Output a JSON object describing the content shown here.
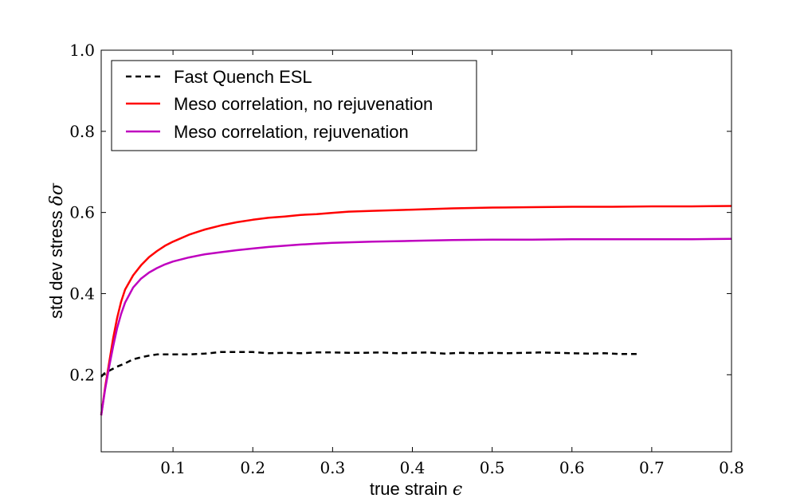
{
  "chart_data": {
    "type": "line",
    "title": "",
    "xlabel": "true strain",
    "xlabel_symbol": "ϵ",
    "ylabel": "std dev stress",
    "ylabel_symbol": "δσ",
    "xlim": [
      0.01,
      0.8
    ],
    "ylim": [
      0.01,
      1.0
    ],
    "xticks": [
      0.1,
      0.2,
      0.3,
      0.4,
      0.5,
      0.6,
      0.7,
      0.8
    ],
    "xtick_labels": [
      "0.1",
      "0.2",
      "0.3",
      "0.4",
      "0.5",
      "0.6",
      "0.7",
      "0.8"
    ],
    "yticks": [
      0.2,
      0.4,
      0.6,
      0.8,
      1.0
    ],
    "ytick_labels": [
      "0.2",
      "0.4",
      "0.6",
      "0.8",
      "1.0"
    ],
    "grid": false,
    "legend_position": "top-left",
    "series": [
      {
        "name": "Fast Quench ESL",
        "color": "#000000",
        "style": "dashed",
        "x": [
          0.01,
          0.015,
          0.02,
          0.03,
          0.04,
          0.05,
          0.06,
          0.07,
          0.08,
          0.09,
          0.1,
          0.12,
          0.14,
          0.16,
          0.18,
          0.2,
          0.22,
          0.24,
          0.26,
          0.28,
          0.3,
          0.32,
          0.34,
          0.36,
          0.38,
          0.4,
          0.42,
          0.44,
          0.46,
          0.48,
          0.5,
          0.52,
          0.54,
          0.56,
          0.58,
          0.6,
          0.62,
          0.64,
          0.66,
          0.68,
          0.685
        ],
        "y": [
          0.195,
          0.205,
          0.21,
          0.22,
          0.228,
          0.238,
          0.243,
          0.247,
          0.25,
          0.25,
          0.25,
          0.25,
          0.252,
          0.256,
          0.256,
          0.256,
          0.253,
          0.254,
          0.253,
          0.255,
          0.255,
          0.254,
          0.254,
          0.255,
          0.253,
          0.254,
          0.255,
          0.252,
          0.254,
          0.253,
          0.254,
          0.253,
          0.254,
          0.255,
          0.254,
          0.253,
          0.252,
          0.253,
          0.251,
          0.251,
          0.253
        ]
      },
      {
        "name": "Meso correlation, no rejuvenation",
        "color": "#ff0000",
        "style": "solid",
        "x": [
          0.01,
          0.015,
          0.02,
          0.025,
          0.03,
          0.035,
          0.04,
          0.05,
          0.06,
          0.07,
          0.08,
          0.09,
          0.1,
          0.12,
          0.14,
          0.16,
          0.18,
          0.2,
          0.22,
          0.24,
          0.26,
          0.28,
          0.3,
          0.32,
          0.35,
          0.4,
          0.45,
          0.5,
          0.55,
          0.6,
          0.65,
          0.7,
          0.75,
          0.8
        ],
        "y": [
          0.1,
          0.17,
          0.23,
          0.29,
          0.34,
          0.38,
          0.41,
          0.445,
          0.47,
          0.49,
          0.505,
          0.518,
          0.528,
          0.545,
          0.558,
          0.568,
          0.576,
          0.582,
          0.587,
          0.59,
          0.594,
          0.596,
          0.599,
          0.602,
          0.604,
          0.607,
          0.61,
          0.612,
          0.613,
          0.614,
          0.614,
          0.615,
          0.615,
          0.616
        ]
      },
      {
        "name": "Meso correlation, rejuvenation",
        "color": "#bf00bf",
        "style": "solid",
        "x": [
          0.01,
          0.015,
          0.02,
          0.025,
          0.03,
          0.035,
          0.04,
          0.05,
          0.06,
          0.07,
          0.08,
          0.09,
          0.1,
          0.12,
          0.14,
          0.16,
          0.18,
          0.2,
          0.22,
          0.24,
          0.26,
          0.28,
          0.3,
          0.35,
          0.4,
          0.45,
          0.5,
          0.55,
          0.6,
          0.65,
          0.7,
          0.75,
          0.8
        ],
        "y": [
          0.1,
          0.165,
          0.22,
          0.27,
          0.315,
          0.35,
          0.378,
          0.415,
          0.437,
          0.452,
          0.463,
          0.472,
          0.479,
          0.489,
          0.497,
          0.502,
          0.507,
          0.511,
          0.515,
          0.518,
          0.521,
          0.523,
          0.525,
          0.528,
          0.53,
          0.532,
          0.533,
          0.533,
          0.534,
          0.534,
          0.534,
          0.534,
          0.535
        ]
      }
    ]
  }
}
